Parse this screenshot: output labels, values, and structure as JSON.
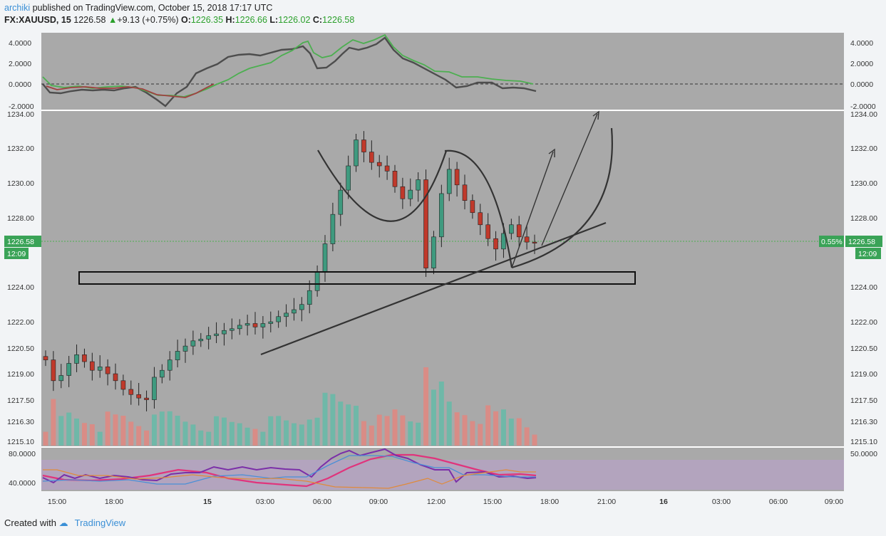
{
  "header": {
    "author": "archiki",
    "published": "published on TradingView.com, October 15, 2018 17:17 UTC",
    "symbol": "FX:XAUUSD, 15",
    "last": "1226.58",
    "change": "+9.13 (+0.75%)",
    "o_label": "O:",
    "o_val": "1226.35",
    "h_label": "H:",
    "h_val": "1226.66",
    "l_label": "L:",
    "l_val": "1226.02",
    "c_label": "C:",
    "c_val": "1226.58"
  },
  "price_badge": {
    "left": "1226.58",
    "left_time": "12:09",
    "pct": "0.55%",
    "right": "1226.58",
    "right_time": "12:09"
  },
  "footer": {
    "created": "Created with",
    "brand": "TradingView"
  },
  "colors": {
    "up": "#3f9a7f",
    "down": "#c0392b",
    "vol_up": "#6fb8a8",
    "vol_down": "#d98c86",
    "bg": "#a9a9a9",
    "panel_bg": "#aaaaaa",
    "osc_fill": "#b7a3c6",
    "macd_line": "#555555",
    "signal_line": "#4caf50"
  },
  "chart_data": [
    {
      "type": "candlestick",
      "title": "FX:XAUUSD, 15",
      "x_ticks": [
        "15:00",
        "18:00",
        "15",
        "03:00",
        "06:00",
        "09:00",
        "12:00",
        "15:00",
        "18:00",
        "21:00",
        "16",
        "03:00",
        "06:00",
        "09:00"
      ],
      "y_ticks": [
        "1234.00",
        "1232.00",
        "1230.00",
        "1228.00",
        "1224.00",
        "1222.00",
        "1220.50",
        "1219.00",
        "1217.50",
        "1216.30",
        "1215.10"
      ],
      "ylim": [
        1215.1,
        1234.0
      ],
      "close_path": [
        1219.8,
        1218.6,
        1218.9,
        1219.6,
        1220.1,
        1219.7,
        1219.2,
        1219.4,
        1219.0,
        1218.6,
        1218.1,
        1217.8,
        1217.6,
        1217.5,
        1218.8,
        1219.2,
        1219.8,
        1220.3,
        1220.6,
        1220.9,
        1221.0,
        1221.2,
        1221.3,
        1221.5,
        1221.6,
        1221.8,
        1221.9,
        1221.7,
        1221.9,
        1222.0,
        1222.3,
        1222.5,
        1222.7,
        1223.0,
        1223.8,
        1224.9,
        1226.5,
        1228.2,
        1229.6,
        1231.0,
        1232.5,
        1231.8,
        1231.2,
        1231.0,
        1230.7,
        1229.8,
        1229.1,
        1229.6,
        1230.2,
        1225.1,
        1226.9,
        1229.4,
        1230.8,
        1229.9,
        1229.0,
        1228.3,
        1227.6,
        1226.8,
        1226.2,
        1227.1,
        1227.6,
        1226.9,
        1226.6,
        1226.58
      ],
      "y_ticks_macd": [
        "4.0000",
        "2.0000",
        "0.0000",
        "-2.0000"
      ],
      "y_ticks_rsi": [
        "80.0000",
        "40.0000",
        "50.0000"
      ]
    }
  ]
}
